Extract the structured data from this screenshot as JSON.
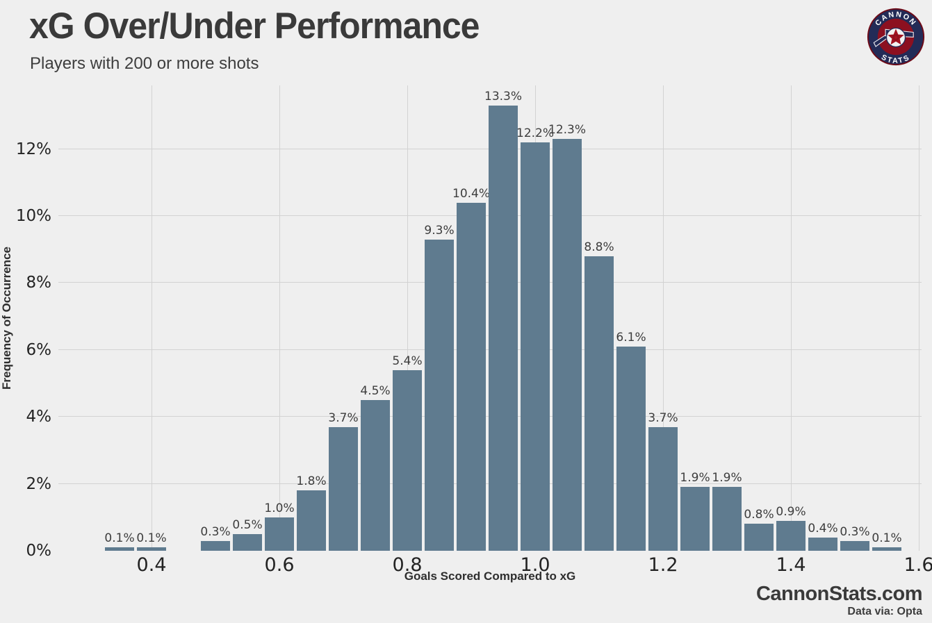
{
  "header": {
    "title": "xG Over/Under Performance",
    "subtitle": "Players with 200 or more shots"
  },
  "logo": {
    "top_text": "CANNON",
    "bottom_text": "STATS",
    "ring_color": "#232b57",
    "inner_color": "#8c1020",
    "rim_color": "#6f0a16"
  },
  "footer": {
    "site": "CannonStats.com",
    "credit": "Data via: Opta"
  },
  "chart_data": {
    "type": "bar",
    "title": "xG Over/Under Performance",
    "subtitle": "Players with 200 or more shots",
    "xlabel": "Goals Scored Compared to xG",
    "ylabel": "Frequency of Occurrence",
    "categories": [
      0.35,
      0.4,
      0.45,
      0.5,
      0.55,
      0.6,
      0.65,
      0.7,
      0.75,
      0.8,
      0.85,
      0.9,
      0.95,
      1.0,
      1.05,
      1.1,
      1.15,
      1.2,
      1.25,
      1.3,
      1.35,
      1.4,
      1.45,
      1.5,
      1.55
    ],
    "values": [
      0.1,
      0.1,
      0,
      0.3,
      0.5,
      1.0,
      1.8,
      3.7,
      4.5,
      5.4,
      9.3,
      10.4,
      13.3,
      12.2,
      12.3,
      8.8,
      6.1,
      3.7,
      1.9,
      1.9,
      0.8,
      0.9,
      0.4,
      0.3,
      0.1
    ],
    "bar_value_labels": [
      "0.1%",
      "0.1%",
      "",
      "0.3%",
      "0.5%",
      "1.0%",
      "1.8%",
      "3.7%",
      "4.5%",
      "5.4%",
      "9.3%",
      "10.4%",
      "13.3%",
      "12.2%",
      "12.3%",
      "8.8%",
      "6.1%",
      "3.7%",
      "1.9%",
      "1.9%",
      "0.8%",
      "0.9%",
      "0.4%",
      "0.3%",
      "0.1%"
    ],
    "xtick_values": [
      0.4,
      0.6,
      0.8,
      1.0,
      1.2,
      1.4,
      1.6
    ],
    "xtick_labels": [
      "0.4",
      "0.6",
      "0.8",
      "1.0",
      "1.2",
      "1.4",
      "1.6"
    ],
    "ytick_values": [
      0,
      2,
      4,
      6,
      8,
      10,
      12
    ],
    "ytick_labels": [
      "0%",
      "2%",
      "4%",
      "6%",
      "8%",
      "10%",
      "12%"
    ],
    "xlim": [
      0.2543,
      1.6043
    ],
    "ylim": [
      0,
      13.9
    ],
    "grid": true,
    "legend": false,
    "bar_color": "#5f7b8f",
    "background": "#efefef",
    "grid_color": "#d2d2d2"
  }
}
